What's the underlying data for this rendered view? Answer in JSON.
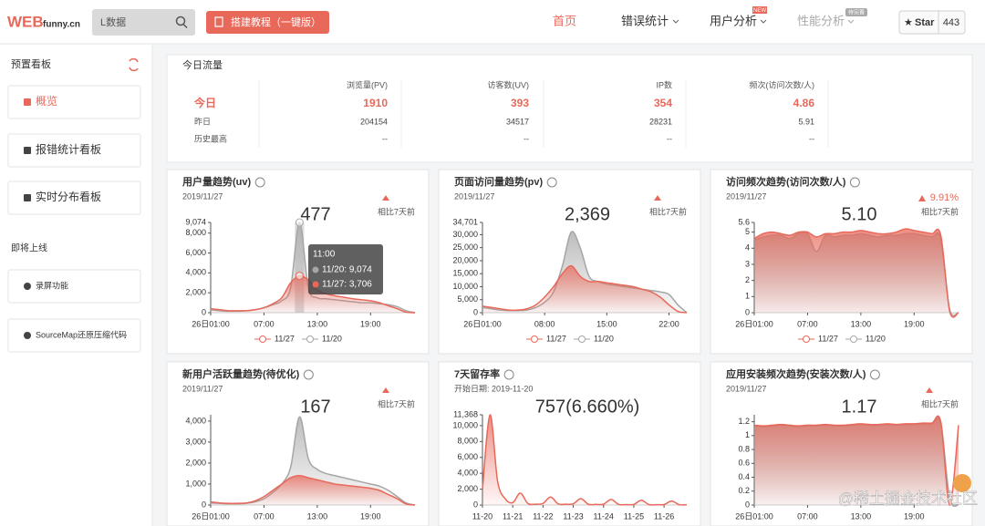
{
  "header": {
    "logo_main": "WEB",
    "logo_sub": "funny.cn",
    "search_placeholder": "L数据",
    "button": "搭建教程（一键版）",
    "nav": [
      "首页",
      "错误统计",
      "用户分析",
      "性能分析"
    ],
    "badge_new": "NEW",
    "badge_todo": "待完善",
    "star": "Star",
    "star_count": "443"
  },
  "sidebar": {
    "title": "预置看板",
    "items": [
      "概览",
      "报错统计看板",
      "实时分布看板"
    ],
    "upcoming_title": "即将上线",
    "upcoming": [
      "录屏功能",
      "SourceMap还原压缩代码"
    ]
  },
  "today": {
    "title": "今日流量",
    "columns": [
      "浏览量(PV)",
      "访客数(UV)",
      "IP数",
      "频次(访问次数/人)"
    ],
    "rows": [
      {
        "label": "今日",
        "values": [
          "1910",
          "393",
          "354",
          "4.86"
        ]
      },
      {
        "label": "昨日",
        "values": [
          "204154",
          "34517",
          "28231",
          "5.91"
        ]
      },
      {
        "label": "历史最高",
        "values": [
          "--",
          "--",
          "--",
          "--"
        ]
      }
    ]
  },
  "panels": [
    {
      "title": "用户量趋势(uv)",
      "date": "2019/11/27",
      "headline": "477",
      "compare": "相比7天前",
      "tooltip": {
        "title": "11:00",
        "lines": [
          "11/20: 9,074",
          "11/27: 3,706"
        ]
      },
      "chart": {
        "type": "area",
        "categories": [
          "26日01:00",
          null,
          null,
          null,
          null,
          null,
          "07:00",
          null,
          null,
          null,
          null,
          null,
          "13:00",
          null,
          null,
          null,
          null,
          null,
          "19:00",
          null,
          null,
          null,
          null,
          null
        ],
        "series": [
          {
            "name": "11/27",
            "color": "#e8685a",
            "values": [
              400,
              300,
              200,
              200,
              200,
              300,
              500,
              900,
              1500,
              3000,
              3706,
              3300,
              2300,
              1900,
              1700,
              1550,
              1400,
              1300,
              1200,
              1000,
              700,
              400,
              50,
              0
            ]
          },
          {
            "name": "11/20",
            "color": "#a6a6a6",
            "values": [
              300,
              200,
              150,
              150,
              200,
              300,
              500,
              800,
              1200,
              2500,
              9074,
              2500,
              1500,
              1400,
              1300,
              1200,
              1100,
              1000,
              1000,
              900,
              800,
              600,
              200,
              0
            ]
          }
        ],
        "ylim": [
          0,
          9074
        ],
        "yticks": [
          0,
          {
            "value": 2000,
            "label": "2,000"
          },
          {
            "value": 4000,
            "label": "4,000"
          },
          {
            "value": 6000,
            "label": "6,000"
          },
          {
            "value": 8000,
            "label": "8,000"
          },
          {
            "value": 9074,
            "label": "9,074"
          }
        ]
      }
    },
    {
      "title": "页面访问量趋势(pv)",
      "date": "2019/11/27",
      "headline": "2,369",
      "compare": "相比7天前",
      "chart": {
        "type": "area",
        "categories": [
          "26日01:00",
          null,
          null,
          null,
          null,
          null,
          null,
          "08:00",
          null,
          null,
          null,
          null,
          null,
          null,
          "15:00",
          null,
          null,
          null,
          null,
          null,
          null,
          "22:00",
          null,
          null
        ],
        "series": [
          {
            "name": "11/27",
            "color": "#e8685a",
            "values": [
              2500,
              2000,
              1500,
              1000,
              1000,
              1500,
              3000,
              6000,
              10000,
              15000,
              18000,
              14000,
              12000,
              12000,
              11500,
              11000,
              10500,
              10000,
              9000,
              8000,
              6000,
              3000,
              500,
              0
            ]
          },
          {
            "name": "11/20",
            "color": "#a6a6a6",
            "values": [
              2000,
              1500,
              1000,
              800,
              800,
              1000,
              2000,
              4000,
              8000,
              18000,
              31000,
              25000,
              14000,
              12000,
              11000,
              10500,
              10000,
              9500,
              9000,
              8500,
              8000,
              7000,
              3000,
              0
            ]
          }
        ],
        "ylim": [
          0,
          34701
        ],
        "yticks": [
          0,
          {
            "value": 5000,
            "label": "5,000"
          },
          {
            "value": 10000,
            "label": "10,000"
          },
          {
            "value": 15000,
            "label": "15,000"
          },
          {
            "value": 20000,
            "label": "20,000"
          },
          {
            "value": 25000,
            "label": "25,000"
          },
          {
            "value": 30000,
            "label": "30,000"
          },
          {
            "value": 34701,
            "label": "34,701"
          }
        ]
      }
    },
    {
      "title": "访问频次趋势(访问次数/人)",
      "date": "2019/11/27",
      "headline": "5.10",
      "compare": "相比7天前",
      "change": "9.91%",
      "chart": {
        "type": "area",
        "categories": [
          "26日01:00",
          null,
          null,
          null,
          null,
          null,
          "07:00",
          null,
          null,
          null,
          null,
          null,
          "13:00",
          null,
          null,
          null,
          null,
          null,
          "19:00",
          null,
          null,
          null,
          null,
          null
        ],
        "series": [
          {
            "name": "11/27",
            "color": "#e8685a",
            "values": [
              4.6,
              4.9,
              5.0,
              4.9,
              4.8,
              5.0,
              5.0,
              4.7,
              4.9,
              4.9,
              5.0,
              5.0,
              5.1,
              5.0,
              4.9,
              4.9,
              5.0,
              5.2,
              5.1,
              5.0,
              4.9,
              4.8,
              0.1,
              0
            ]
          },
          {
            "name": "11/20",
            "color": "#a6a6a6",
            "values": [
              4.5,
              4.7,
              4.8,
              4.8,
              4.6,
              4.9,
              4.9,
              3.8,
              4.8,
              4.7,
              4.8,
              4.8,
              4.9,
              4.8,
              4.7,
              4.8,
              4.8,
              4.9,
              4.9,
              4.8,
              4.7,
              4.6,
              0.2,
              0
            ]
          }
        ],
        "ylim": [
          0,
          5.6
        ],
        "yticks": [
          0,
          1,
          2,
          3,
          4,
          5,
          5.6
        ]
      }
    },
    {
      "title": "新用户活跃量趋势(待优化)",
      "date": "2019/11/27",
      "headline": "167",
      "compare": "相比7天前",
      "chart": {
        "type": "area",
        "categories": [
          "26日01:00",
          null,
          null,
          null,
          null,
          null,
          "07:00",
          null,
          null,
          null,
          null,
          null,
          "13:00",
          null,
          null,
          null,
          null,
          null,
          "19:00",
          null,
          null,
          null,
          null,
          null
        ],
        "series": [
          {
            "color": "#e8685a",
            "values": [
              150,
              100,
              80,
              80,
              100,
              200,
              400,
              700,
              1000,
              1300,
              1400,
              1300,
              1200,
              1100,
              1000,
              950,
              900,
              850,
              800,
              700,
              500,
              300,
              50,
              0
            ]
          },
          {
            "color": "#a6a6a6",
            "values": [
              100,
              80,
              60,
              60,
              80,
              150,
              300,
              600,
              1000,
              1800,
              4200,
              2200,
              1700,
              1500,
              1400,
              1300,
              1200,
              1100,
              1000,
              900,
              700,
              400,
              100,
              0
            ]
          }
        ],
        "ylim": [
          0,
          4300
        ],
        "yticks": [
          0,
          {
            "value": 1000,
            "label": "1,000"
          },
          {
            "value": 2000,
            "label": "2,000"
          },
          {
            "value": 3000,
            "label": "3,000"
          },
          {
            "value": 4000,
            "label": "4,000"
          }
        ]
      }
    },
    {
      "title": "7天留存率",
      "subtitle": "开始日期: 2019-11-20",
      "headline": "757(6.660%)",
      "chart": {
        "type": "area",
        "categories": [
          "11-20",
          null,
          null,
          null,
          "11-21",
          null,
          null,
          null,
          "11-22",
          null,
          null,
          null,
          "11-23",
          null,
          null,
          null,
          "11-24",
          null,
          null,
          null,
          "11-25",
          null,
          null,
          null,
          "11-26",
          null,
          null,
          null
        ],
        "series": [
          {
            "color": "#e8685a",
            "values": [
              2000,
              11368,
              3000,
              800,
              300,
              1500,
              200,
              100,
              200,
              1000,
              150,
              100,
              150,
              800,
              100,
              80,
              100,
              700,
              80,
              60,
              80,
              600,
              60,
              50,
              60,
              500,
              50,
              40
            ]
          }
        ],
        "ylim": [
          0,
          11368
        ],
        "yticks": [
          0,
          {
            "value": 2000,
            "label": "2,000"
          },
          {
            "value": 4000,
            "label": "4,000"
          },
          {
            "value": 6000,
            "label": "6,000"
          },
          {
            "value": 8000,
            "label": "8,000"
          },
          {
            "value": 10000,
            "label": "10,000"
          },
          {
            "value": 11368,
            "label": "11,368"
          }
        ]
      }
    },
    {
      "title": "应用安装频次趋势(安装次数/人)",
      "date": "2019/11/27",
      "headline": "1.17",
      "compare": "相比7天前",
      "chart": {
        "type": "area",
        "categories": [
          "26日01:00",
          null,
          null,
          null,
          null,
          null,
          "07:00",
          null,
          null,
          null,
          null,
          null,
          "13:00",
          null,
          null,
          null,
          null,
          null,
          "19:00",
          null,
          null,
          null,
          null,
          null
        ],
        "series": [
          {
            "color": "#e8685a",
            "values": [
              1.15,
              1.14,
              1.15,
              1.16,
              1.15,
              1.14,
              1.15,
              1.15,
              1.16,
              1.15,
              1.15,
              1.16,
              1.17,
              1.16,
              1.16,
              1.17,
              1.16,
              1.17,
              1.17,
              1.18,
              1.18,
              1.2,
              0,
              1.15
            ]
          },
          {
            "color": "#a6a6a6",
            "values": [
              1.14,
              1.13,
              1.14,
              1.15,
              1.14,
              1.13,
              1.14,
              1.14,
              1.15,
              1.14,
              1.14,
              1.15,
              1.16,
              1.15,
              1.15,
              1.16,
              1.15,
              1.16,
              1.16,
              1.17,
              1.17,
              1.18,
              0.1,
              0
            ]
          }
        ],
        "ylim": [
          0,
          1.3
        ],
        "yticks": [
          0,
          0.2,
          0.4,
          0.6,
          0.8,
          1,
          1.2
        ]
      }
    }
  ],
  "watermark": "@稀土掘金技术社区"
}
